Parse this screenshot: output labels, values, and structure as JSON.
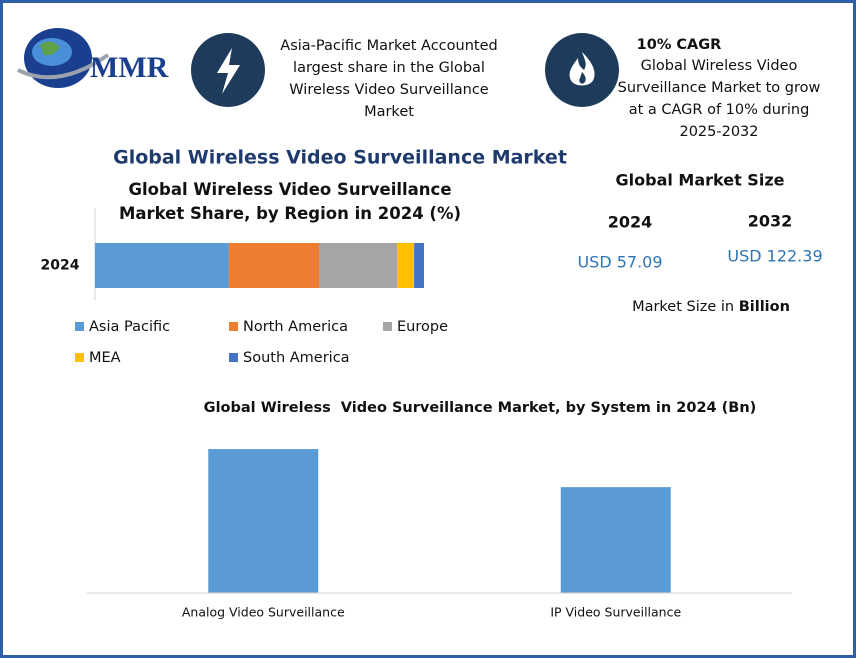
{
  "logo": {
    "text": "MMR"
  },
  "highlights": [
    {
      "text": "Asia-Pacific Market Accounted largest share in the Global Wireless Video Surveillance Market"
    },
    {
      "title": "10% CAGR",
      "text": "Global Wireless Video Surveillance Market to grow at a CAGR of 10% during 2025-2032"
    }
  ],
  "title": "Global Wireless Video Surveillance Market",
  "market_size": {
    "title": "Global Market Size",
    "years": [
      "2024",
      "2032"
    ],
    "values": [
      "USD 57.09",
      "USD 122.39"
    ],
    "note": "Market Size in",
    "unit": "Billion"
  },
  "chart_data": [
    {
      "type": "stacked_bar",
      "title": "Global Wireless Video Surveillance Market Share, by Region in 2024 (%)",
      "categories": [
        "2024"
      ],
      "xlim": [
        0,
        100
      ],
      "series": [
        {
          "name": "Asia Pacific",
          "color": "#5b9bd5",
          "values": [
            40.7
          ]
        },
        {
          "name": "North America",
          "color": "#ed7d31",
          "values": [
            27.4
          ]
        },
        {
          "name": "Europe",
          "color": "#a5a5a5",
          "values": [
            23.7
          ]
        },
        {
          "name": "MEA",
          "color": "#ffc000",
          "values": [
            5.2
          ]
        },
        {
          "name": "South America",
          "color": "#4472c4",
          "values": [
            3.0
          ]
        }
      ]
    },
    {
      "type": "bar",
      "title": "Global Wireless  Video Surveillance Market, by System in 2024 (Bn)",
      "categories": [
        "Analog Video Surveillance",
        "IP Video Surveillance"
      ],
      "values": [
        32.9,
        24.2
      ],
      "color": "#5b9bd5",
      "ylim": [
        0,
        40
      ]
    }
  ]
}
